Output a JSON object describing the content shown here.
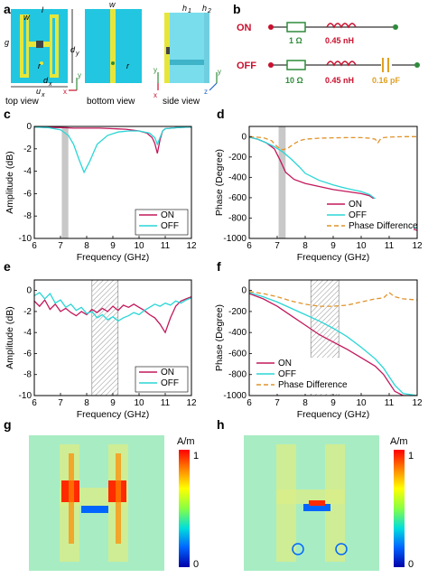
{
  "panels": {
    "a": "a",
    "b": "b",
    "c": "c",
    "d": "d",
    "e": "e",
    "f": "f",
    "g": "g",
    "h": "h"
  },
  "panel_a": {
    "views": [
      "top view",
      "bottom view",
      "side view"
    ],
    "dims": {
      "w": "w",
      "l": "l",
      "g": "g",
      "r": "r",
      "dy": "d",
      "dy_sub": "y",
      "dx": "d",
      "dx_sub": "x",
      "ux": "u",
      "ux_sub": "x",
      "h1": "h",
      "h1_sub": "1",
      "h2": "h",
      "h2_sub": "2"
    },
    "axes": {
      "x": "x",
      "y": "y",
      "z": "z"
    },
    "colors": {
      "substrate": "#22c6e0",
      "metal": "#e6e63a",
      "gap": "#444444"
    }
  },
  "panel_b": {
    "on_label": "ON",
    "off_label": "OFF",
    "on_r": "1 Ω",
    "on_l": "0.45 nH",
    "off_r": "10 Ω",
    "off_l": "0.45 nH",
    "off_c": "0.16 pF",
    "colors": {
      "label": "#c8102e",
      "wire": "#333333",
      "resistor": "#2e8b3a",
      "inductor": "#c8102e",
      "capacitor": "#e0a020",
      "node_left": "#c8102e",
      "node_right": "#2e8b3a"
    }
  },
  "chart_data": [
    {
      "id": "c",
      "type": "line",
      "xlabel": "Frequency (GHz)",
      "ylabel": "Amplitude (dB)",
      "xlim": [
        6,
        12
      ],
      "ylim": [
        -10,
        0
      ],
      "xticks": [
        6,
        7,
        8,
        9,
        10,
        11,
        12
      ],
      "yticks": [
        0,
        -2,
        -4,
        -6,
        -8,
        -10
      ],
      "band": [
        7.05,
        7.3
      ],
      "band_style": "solid-gray",
      "legend": "bottom-right",
      "series": [
        {
          "name": "ON",
          "color": "#c2185b",
          "dash": "",
          "x": [
            6,
            6.5,
            7,
            7.5,
            8,
            8.5,
            9,
            9.5,
            10,
            10.3,
            10.5,
            10.6,
            10.7,
            10.8,
            10.9,
            11,
            11.5,
            12
          ],
          "y": [
            -0.05,
            -0.1,
            -0.1,
            -0.15,
            -0.15,
            -0.15,
            -0.2,
            -0.25,
            -0.4,
            -0.6,
            -1.0,
            -1.5,
            -2.4,
            -1.2,
            -0.4,
            -0.2,
            -0.1,
            -0.05
          ]
        },
        {
          "name": "OFF",
          "color": "#2ad6d6",
          "dash": "",
          "x": [
            6,
            6.5,
            7,
            7.3,
            7.5,
            7.7,
            7.9,
            8.1,
            8.4,
            8.8,
            9.2,
            9.6,
            10,
            10.4,
            10.6,
            10.7,
            10.8,
            10.9,
            11,
            11.5,
            12
          ],
          "y": [
            -0.05,
            -0.1,
            -0.3,
            -0.8,
            -1.6,
            -2.9,
            -4.1,
            -3.2,
            -1.6,
            -0.8,
            -0.5,
            -0.4,
            -0.4,
            -0.6,
            -1.0,
            -1.6,
            -1.0,
            -0.4,
            -0.2,
            -0.1,
            -0.05
          ]
        }
      ]
    },
    {
      "id": "d",
      "type": "line",
      "xlabel": "Frequency (GHz)",
      "ylabel": "Phase (Degree)",
      "xlim": [
        6,
        12
      ],
      "ylim": [
        -1000,
        100
      ],
      "xticks": [
        6,
        7,
        8,
        9,
        10,
        11,
        12
      ],
      "yticks": [
        0,
        -200,
        -400,
        -600,
        -800,
        -1000
      ],
      "band": [
        7.05,
        7.3
      ],
      "band_style": "solid-gray",
      "legend": "bottom-right",
      "series": [
        {
          "name": "ON",
          "color": "#c2185b",
          "dash": "",
          "x": [
            6,
            6.3,
            6.6,
            6.9,
            7.1,
            7.3,
            7.6,
            8,
            8.5,
            9,
            9.5,
            10,
            10.3,
            10.5,
            10.6,
            10.7,
            10.8,
            11,
            11.5,
            12
          ],
          "y": [
            -5,
            -25,
            -60,
            -120,
            -230,
            -350,
            -420,
            -460,
            -490,
            -520,
            -540,
            -560,
            -580,
            -620,
            -680,
            -750,
            -810,
            -840,
            -880,
            -920
          ]
        },
        {
          "name": "OFF",
          "color": "#2ad6d6",
          "dash": "",
          "x": [
            6,
            6.3,
            6.6,
            6.9,
            7.2,
            7.5,
            7.8,
            8,
            8.5,
            9,
            9.5,
            10,
            10.3,
            10.5,
            10.6,
            10.7,
            10.8,
            11,
            11.5,
            12
          ],
          "y": [
            -5,
            -25,
            -60,
            -100,
            -150,
            -220,
            -300,
            -360,
            -430,
            -475,
            -510,
            -540,
            -570,
            -610,
            -670,
            -750,
            -800,
            -830,
            -870,
            -900
          ]
        },
        {
          "name": "Phase Difference",
          "color": "#e0932a",
          "dash": "5,3",
          "x": [
            6,
            6.5,
            6.8,
            7,
            7.2,
            7.4,
            7.6,
            7.8,
            8,
            8.5,
            9,
            9.5,
            10,
            10.3,
            10.5,
            10.6,
            10.7,
            10.8,
            11,
            11.5,
            12
          ],
          "y": [
            0,
            -10,
            -40,
            -100,
            -130,
            -110,
            -70,
            -40,
            -25,
            -15,
            -12,
            -10,
            -10,
            -15,
            -25,
            -60,
            -20,
            -10,
            -5,
            0,
            0
          ]
        }
      ]
    },
    {
      "id": "e",
      "type": "line",
      "xlabel": "Frequency (GHz)",
      "ylabel": "Amplitude (dB)",
      "xlim": [
        6,
        12
      ],
      "ylim": [
        -10,
        1
      ],
      "xticks": [
        6,
        7,
        8,
        9,
        10,
        11,
        12
      ],
      "yticks": [
        0,
        -2,
        -4,
        -6,
        -8,
        -10
      ],
      "band": [
        8.2,
        9.2
      ],
      "band_style": "hatched",
      "legend": "bottom-right",
      "series": [
        {
          "name": "ON",
          "color": "#c2185b",
          "dash": "",
          "x": [
            6,
            6.2,
            6.4,
            6.6,
            6.8,
            7,
            7.2,
            7.4,
            7.6,
            7.8,
            8,
            8.2,
            8.4,
            8.6,
            8.8,
            9,
            9.2,
            9.4,
            9.6,
            9.8,
            10,
            10.2,
            10.4,
            10.6,
            10.8,
            11,
            11.2,
            11.4,
            11.6,
            11.8,
            12
          ],
          "y": [
            -1.0,
            -1.5,
            -0.9,
            -1.8,
            -1.3,
            -2.0,
            -1.7,
            -2.1,
            -2.4,
            -2.0,
            -2.3,
            -1.8,
            -2.1,
            -1.7,
            -2.0,
            -1.5,
            -1.9,
            -1.4,
            -1.6,
            -1.3,
            -1.6,
            -1.9,
            -2.3,
            -2.6,
            -3.2,
            -4.0,
            -2.6,
            -1.5,
            -1.0,
            -0.8,
            -0.6
          ]
        },
        {
          "name": "OFF",
          "color": "#2ad6d6",
          "dash": "",
          "x": [
            6,
            6.2,
            6.4,
            6.6,
            6.8,
            7,
            7.2,
            7.4,
            7.6,
            7.8,
            8,
            8.2,
            8.4,
            8.6,
            8.8,
            9,
            9.2,
            9.4,
            9.6,
            9.8,
            10,
            10.2,
            10.4,
            10.6,
            10.8,
            11,
            11.2,
            11.4,
            11.6,
            11.8,
            12
          ],
          "y": [
            -0.5,
            -0.2,
            -0.8,
            -0.3,
            -1.2,
            -0.9,
            -1.6,
            -1.3,
            -1.9,
            -1.6,
            -2.2,
            -2.0,
            -2.6,
            -2.3,
            -2.8,
            -2.5,
            -2.9,
            -2.6,
            -2.4,
            -2.1,
            -2.3,
            -1.9,
            -1.6,
            -1.3,
            -1.5,
            -1.2,
            -1.4,
            -1.0,
            -1.2,
            -0.9,
            -0.7
          ]
        }
      ]
    },
    {
      "id": "f",
      "type": "line",
      "xlabel": "Frequency (GHz)",
      "ylabel": "Phase (Degree)",
      "xlim": [
        6,
        12
      ],
      "ylim": [
        -1000,
        100
      ],
      "xticks": [
        6,
        7,
        8,
        9,
        10,
        11,
        12
      ],
      "yticks": [
        0,
        -200,
        -400,
        -600,
        -800,
        -1000
      ],
      "band": [
        8.2,
        9.2
      ],
      "band_style": "hatched",
      "legend": "bottom-left",
      "series": [
        {
          "name": "ON",
          "color": "#c2185b",
          "dash": "",
          "x": [
            6,
            6.5,
            7,
            7.5,
            8,
            8.5,
            9,
            9.5,
            10,
            10.5,
            10.8,
            11,
            11.2,
            11.5,
            12
          ],
          "y": [
            -30,
            -80,
            -150,
            -240,
            -330,
            -420,
            -490,
            -560,
            -640,
            -720,
            -800,
            -880,
            -960,
            -1000,
            -1000
          ]
        },
        {
          "name": "OFF",
          "color": "#2ad6d6",
          "dash": "",
          "x": [
            6,
            6.5,
            7,
            7.5,
            8,
            8.5,
            9,
            9.5,
            10,
            10.5,
            10.8,
            11,
            11.2,
            11.5,
            12
          ],
          "y": [
            -20,
            -60,
            -110,
            -170,
            -230,
            -290,
            -360,
            -440,
            -540,
            -650,
            -740,
            -820,
            -900,
            -980,
            -1000
          ]
        },
        {
          "name": "Phase Difference",
          "color": "#e0932a",
          "dash": "5,3",
          "x": [
            6,
            6.5,
            7,
            7.5,
            8,
            8.5,
            9,
            9.5,
            10,
            10.5,
            10.8,
            11,
            11.2,
            11.5,
            12
          ],
          "y": [
            -10,
            -30,
            -60,
            -100,
            -130,
            -150,
            -150,
            -140,
            -110,
            -80,
            -70,
            -20,
            -60,
            -80,
            -90
          ]
        }
      ]
    }
  ],
  "field_maps": {
    "unit": "A/m",
    "scale_max": "1",
    "scale_min": "0",
    "colorbar": [
      "#ff0000",
      "#ff8800",
      "#ffff00",
      "#88ff44",
      "#00dddd",
      "#0066ff",
      "#0000aa"
    ],
    "background": "#a8ecc4"
  }
}
